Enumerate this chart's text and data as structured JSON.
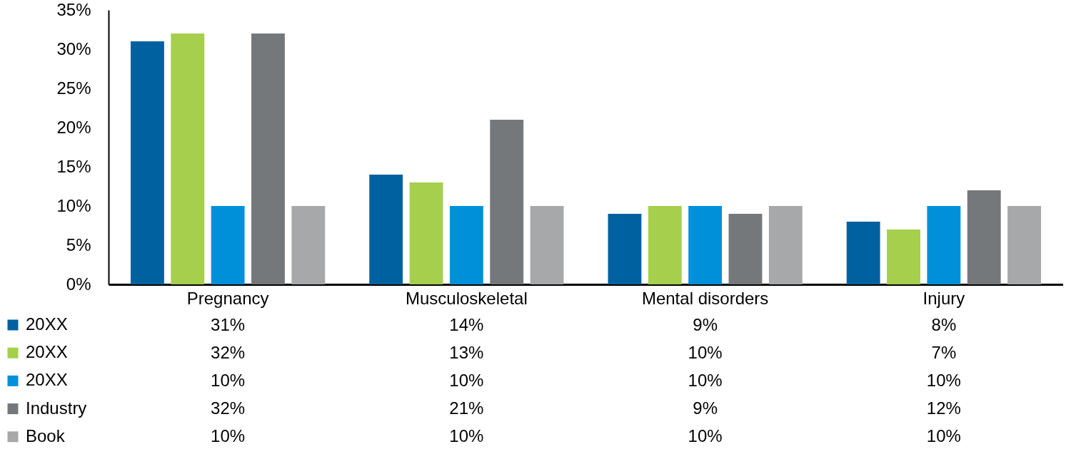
{
  "chart_data": {
    "type": "bar",
    "categories": [
      "Pregnancy",
      "Musculoskeletal",
      "Mental disorders",
      "Injury"
    ],
    "series": [
      {
        "name": "20XX",
        "color": "#0061a0",
        "values": [
          31,
          14,
          9,
          8
        ],
        "value_labels": [
          "31%",
          "14%",
          "9%",
          "8%"
        ]
      },
      {
        "name": "20XX",
        "color": "#a5cf4c",
        "values": [
          32,
          13,
          10,
          7
        ],
        "value_labels": [
          "32%",
          "13%",
          "10%",
          "7%"
        ]
      },
      {
        "name": "20XX",
        "color": "#0090da",
        "values": [
          10,
          10,
          10,
          10
        ],
        "value_labels": [
          "10%",
          "10%",
          "10%",
          "10%"
        ]
      },
      {
        "name": "Industry",
        "color": "#75787b",
        "values": [
          32,
          21,
          9,
          12
        ],
        "value_labels": [
          "32%",
          "21%",
          "9%",
          "12%"
        ]
      },
      {
        "name": "Book",
        "color": "#a7a8aa",
        "values": [
          10,
          10,
          10,
          10
        ],
        "value_labels": [
          "10%",
          "10%",
          "10%",
          "10%"
        ]
      }
    ],
    "ylim": [
      0,
      35
    ],
    "yticks": [
      {
        "value": 0,
        "label": "0%"
      },
      {
        "value": 5,
        "label": "5%"
      },
      {
        "value": 10,
        "label": "10%"
      },
      {
        "value": 15,
        "label": "15%"
      },
      {
        "value": 20,
        "label": "20%"
      },
      {
        "value": 25,
        "label": "25%"
      },
      {
        "value": 30,
        "label": "30%"
      },
      {
        "value": 35,
        "label": "35%"
      }
    ],
    "legend": "bottom left"
  }
}
